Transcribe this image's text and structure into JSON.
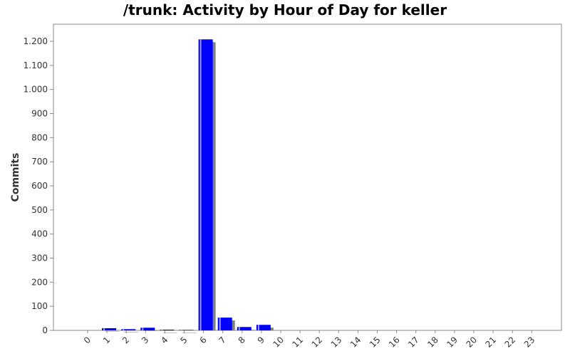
{
  "chart_data": {
    "type": "bar",
    "title": "/trunk: Activity by Hour of Day for keller",
    "xlabel": "",
    "ylabel": "Commits",
    "categories": [
      "0",
      "1",
      "2",
      "3",
      "4",
      "5",
      "6",
      "7",
      "8",
      "9",
      "10",
      "11",
      "12",
      "13",
      "14",
      "15",
      "16",
      "17",
      "18",
      "19",
      "20",
      "21",
      "22",
      "23"
    ],
    "values": [
      0,
      9,
      5,
      11,
      3,
      2,
      1208,
      53,
      14,
      23,
      0,
      0,
      0,
      0,
      0,
      0,
      0,
      0,
      0,
      0,
      0,
      0,
      0,
      0
    ],
    "ylim": [
      0,
      1250
    ],
    "yticks": [
      0,
      100,
      200,
      300,
      400,
      500,
      600,
      700,
      800,
      900,
      1000,
      1100,
      1200
    ],
    "ytick_labels": [
      "0",
      "100",
      "200",
      "300",
      "400",
      "500",
      "600",
      "700",
      "800",
      "900",
      "1.000",
      "1.100",
      "1.200"
    ],
    "grid": false,
    "colors": {
      "bar": "#0000ff",
      "shadow": "#808080",
      "bar_highlight": "#9999ff",
      "axis": "#888888"
    }
  }
}
